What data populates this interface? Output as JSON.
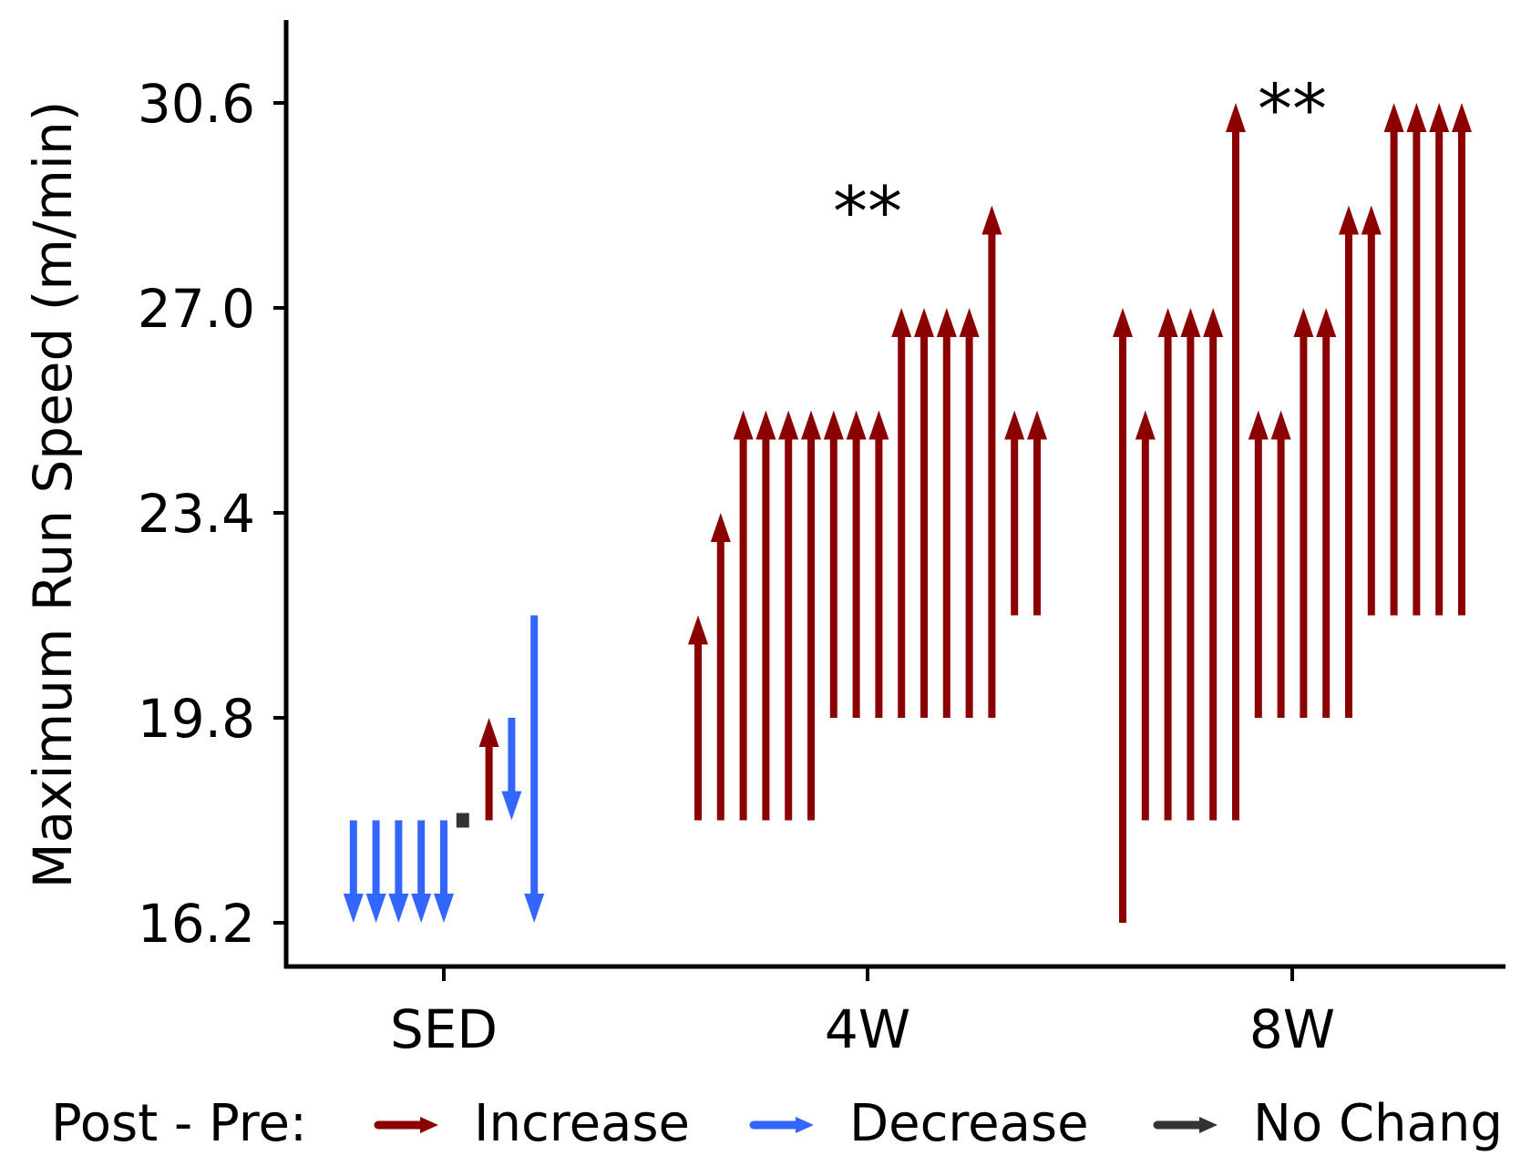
{
  "chart_data": {
    "type": "arrow",
    "ylabel": "Maximum Run Speed (m/min)",
    "xlabel": "",
    "yticks": [
      16.2,
      19.8,
      23.4,
      27.0,
      30.6
    ],
    "ytick_labels": [
      "16.2",
      "19.8",
      "23.4",
      "27.0",
      "30.6"
    ],
    "ylim": [
      15.5,
      32.0
    ],
    "categories": [
      "SED",
      "4W",
      "8W"
    ],
    "legend": {
      "title": "Post - Pre:",
      "position": "bottom",
      "entries": [
        {
          "label": "Increase",
          "color": "#8B0000"
        },
        {
          "label": "Decrease",
          "color": "#3366FF"
        },
        {
          "label": "No Chang",
          "color": "#333333"
        }
      ]
    },
    "annotations": [
      {
        "category": "4W",
        "text": "**",
        "y": 29.2
      },
      {
        "category": "8W",
        "text": "**",
        "y": 31.0
      }
    ],
    "groups": [
      {
        "category": "SED",
        "arrows": [
          {
            "pre": 18.0,
            "post": 16.2
          },
          {
            "pre": 18.0,
            "post": 16.2
          },
          {
            "pre": 18.0,
            "post": 16.2
          },
          {
            "pre": 18.0,
            "post": 16.2
          },
          {
            "pre": 18.0,
            "post": 16.2
          },
          {
            "pre": 18.0,
            "post": 18.0
          },
          {
            "pre": 18.0,
            "post": 19.8
          },
          {
            "pre": 19.8,
            "post": 18.0
          },
          {
            "pre": 21.6,
            "post": 16.2
          }
        ]
      },
      {
        "category": "4W",
        "arrows": [
          {
            "pre": 18.0,
            "post": 21.6
          },
          {
            "pre": 18.0,
            "post": 23.4
          },
          {
            "pre": 18.0,
            "post": 25.2
          },
          {
            "pre": 18.0,
            "post": 25.2
          },
          {
            "pre": 18.0,
            "post": 25.2
          },
          {
            "pre": 18.0,
            "post": 25.2
          },
          {
            "pre": 19.8,
            "post": 25.2
          },
          {
            "pre": 19.8,
            "post": 25.2
          },
          {
            "pre": 19.8,
            "post": 25.2
          },
          {
            "pre": 19.8,
            "post": 27.0
          },
          {
            "pre": 19.8,
            "post": 27.0
          },
          {
            "pre": 19.8,
            "post": 27.0
          },
          {
            "pre": 19.8,
            "post": 27.0
          },
          {
            "pre": 19.8,
            "post": 28.8
          },
          {
            "pre": 21.6,
            "post": 25.2
          },
          {
            "pre": 21.6,
            "post": 25.2
          }
        ]
      },
      {
        "category": "8W",
        "arrows": [
          {
            "pre": 16.2,
            "post": 27.0
          },
          {
            "pre": 18.0,
            "post": 25.2
          },
          {
            "pre": 18.0,
            "post": 27.0
          },
          {
            "pre": 18.0,
            "post": 27.0
          },
          {
            "pre": 18.0,
            "post": 27.0
          },
          {
            "pre": 18.0,
            "post": 30.6
          },
          {
            "pre": 19.8,
            "post": 25.2
          },
          {
            "pre": 19.8,
            "post": 25.2
          },
          {
            "pre": 19.8,
            "post": 27.0
          },
          {
            "pre": 19.8,
            "post": 27.0
          },
          {
            "pre": 19.8,
            "post": 28.8
          },
          {
            "pre": 21.6,
            "post": 28.8
          },
          {
            "pre": 21.6,
            "post": 30.6
          },
          {
            "pre": 21.6,
            "post": 30.6
          },
          {
            "pre": 21.6,
            "post": 30.6
          },
          {
            "pre": 21.6,
            "post": 30.6
          }
        ]
      }
    ]
  }
}
